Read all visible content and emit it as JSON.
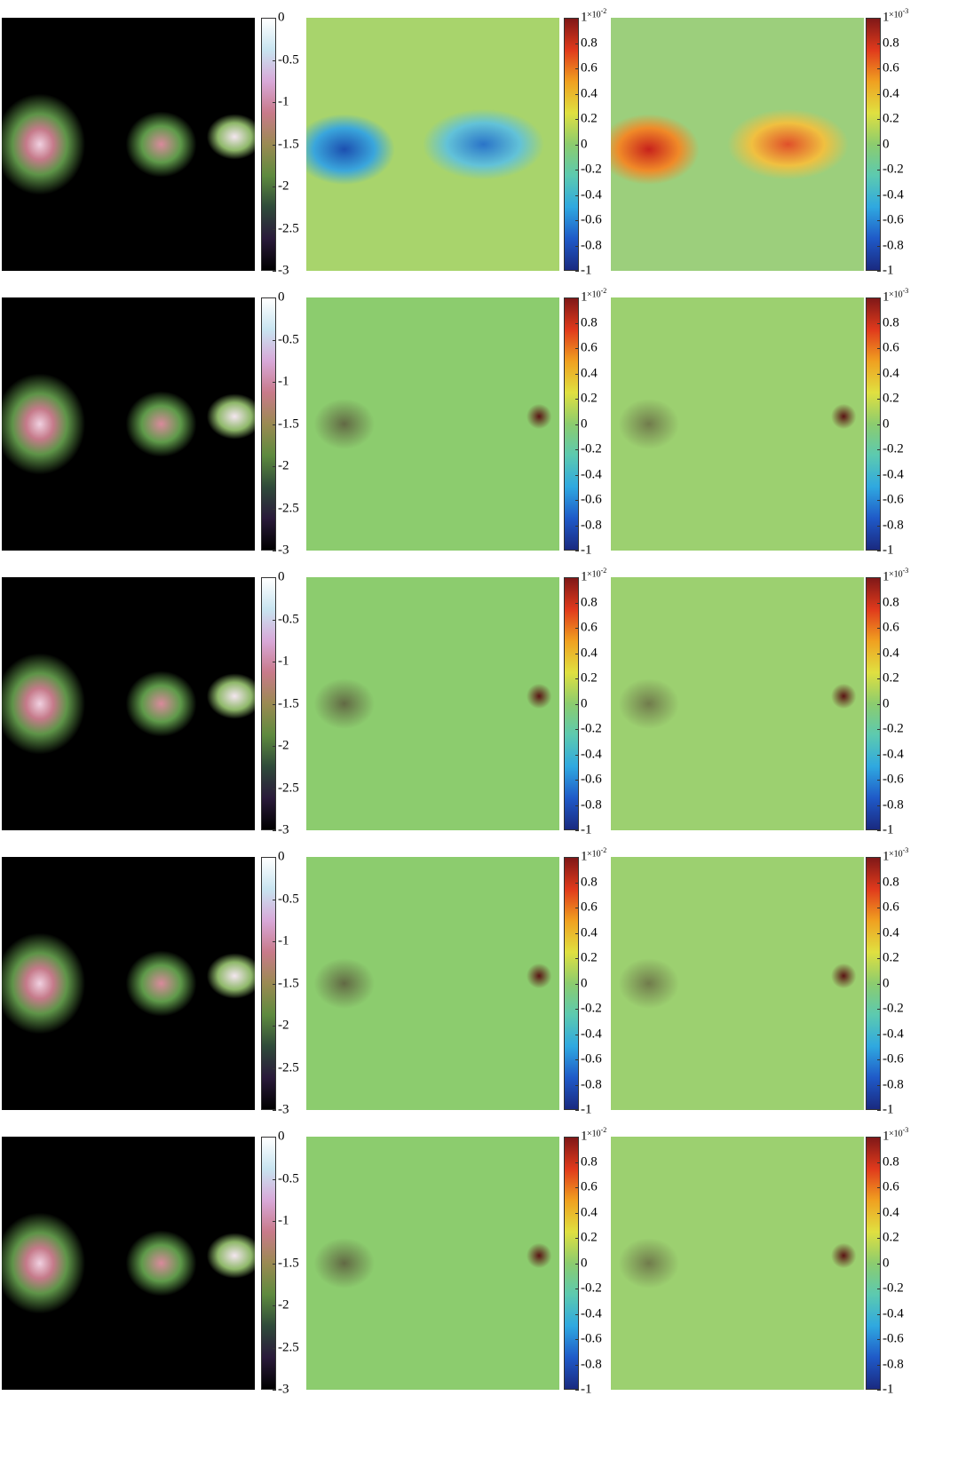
{
  "colormaps": {
    "intensity": [
      "#000000",
      "#2a1a3a",
      "#2f4a3a",
      "#5e8a3e",
      "#9a8a52",
      "#c87a8a",
      "#d8a8d8",
      "#c8e4f0",
      "#ffffff"
    ],
    "residual": [
      "#1a2a80",
      "#1f5ac8",
      "#2fa8e0",
      "#5ccab0",
      "#8ccc6e",
      "#e0e040",
      "#f0a020",
      "#e03a1c",
      "#801818"
    ]
  },
  "panels": [
    {
      "colormap": "intensity",
      "clim": [
        -3,
        0
      ],
      "ticks": [
        0,
        -0.5,
        -1,
        -1.5,
        -2,
        -2.5,
        -3
      ]
    },
    {
      "colormap": "residual",
      "clim": [
        -1,
        1
      ],
      "ticks": [
        1,
        0.8,
        0.6,
        0.4,
        0.2,
        0,
        -0.2,
        -0.4,
        -0.6,
        -0.8,
        -1
      ],
      "exponent": {
        "base": "×10",
        "power": "-2"
      }
    },
    {
      "colormap": "residual",
      "clim": [
        -1,
        1
      ],
      "ticks": [
        1,
        0.8,
        0.6,
        0.4,
        0.2,
        0,
        -0.2,
        -0.4,
        -0.6,
        -0.8,
        -1
      ],
      "exponent": {
        "base": "×10",
        "power": "-3"
      }
    },
    {
      "colormap": "intensity",
      "clim": [
        -3,
        0
      ],
      "ticks": [
        0,
        -0.5,
        -1,
        -1.5,
        -2,
        -2.5,
        -3
      ]
    },
    {
      "colormap": "residual",
      "clim": [
        -1,
        1
      ],
      "ticks": [
        1,
        0.8,
        0.6,
        0.4,
        0.2,
        0,
        -0.2,
        -0.4,
        -0.6,
        -0.8,
        -1
      ],
      "exponent": {
        "base": "×10",
        "power": "-2"
      }
    },
    {
      "colormap": "residual",
      "clim": [
        -1,
        1
      ],
      "ticks": [
        1,
        0.8,
        0.6,
        0.4,
        0.2,
        0,
        -0.2,
        -0.4,
        -0.6,
        -0.8,
        -1
      ],
      "exponent": {
        "base": "×10",
        "power": "-3"
      }
    },
    {
      "colormap": "intensity",
      "clim": [
        -3,
        0
      ],
      "ticks": [
        0,
        -0.5,
        -1,
        -1.5,
        -2,
        -2.5,
        -3
      ]
    },
    {
      "colormap": "residual",
      "clim": [
        -1,
        1
      ],
      "ticks": [
        1,
        0.8,
        0.6,
        0.4,
        0.2,
        0,
        -0.2,
        -0.4,
        -0.6,
        -0.8,
        -1
      ],
      "exponent": {
        "base": "×10",
        "power": "-2"
      }
    },
    {
      "colormap": "residual",
      "clim": [
        -1,
        1
      ],
      "ticks": [
        1,
        0.8,
        0.6,
        0.4,
        0.2,
        0,
        -0.2,
        -0.4,
        -0.6,
        -0.8,
        -1
      ],
      "exponent": {
        "base": "×10",
        "power": "-3"
      }
    },
    {
      "colormap": "intensity",
      "clim": [
        -3,
        0
      ],
      "ticks": [
        0,
        -0.5,
        -1,
        -1.5,
        -2,
        -2.5,
        -3
      ]
    },
    {
      "colormap": "residual",
      "clim": [
        -1,
        1
      ],
      "ticks": [
        1,
        0.8,
        0.6,
        0.4,
        0.2,
        0,
        -0.2,
        -0.4,
        -0.6,
        -0.8,
        -1
      ],
      "exponent": {
        "base": "×10",
        "power": "-2"
      }
    },
    {
      "colormap": "residual",
      "clim": [
        -1,
        1
      ],
      "ticks": [
        1,
        0.8,
        0.6,
        0.4,
        0.2,
        0,
        -0.2,
        -0.4,
        -0.6,
        -0.8,
        -1
      ],
      "exponent": {
        "base": "×10",
        "power": "-3"
      }
    },
    {
      "colormap": "intensity",
      "clim": [
        -3,
        0
      ],
      "ticks": [
        0,
        -0.5,
        -1,
        -1.5,
        -2,
        -2.5,
        -3
      ]
    },
    {
      "colormap": "residual",
      "clim": [
        -1,
        1
      ],
      "ticks": [
        1,
        0.8,
        0.6,
        0.4,
        0.2,
        0,
        -0.2,
        -0.4,
        -0.6,
        -0.8,
        -1
      ],
      "exponent": {
        "base": "×10",
        "power": "-2"
      }
    },
    {
      "colormap": "residual",
      "clim": [
        -1,
        1
      ],
      "ticks": [
        1,
        0.8,
        0.6,
        0.4,
        0.2,
        0,
        -0.2,
        -0.4,
        -0.6,
        -0.8,
        -1
      ],
      "exponent": {
        "base": "×10",
        "power": "-3"
      }
    }
  ]
}
